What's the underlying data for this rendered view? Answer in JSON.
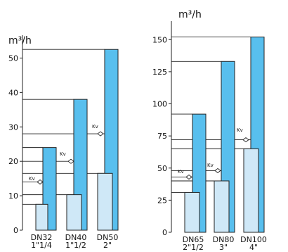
{
  "colors": {
    "kvs_bar": "#58bfee",
    "flow_bar": "#cfe8f7",
    "bar_stroke": "#222222",
    "line": "#222222"
  },
  "chart_data": [
    {
      "type": "bar",
      "unit_label": "m³/h",
      "ylim": [
        0,
        55
      ],
      "yticks": [
        0,
        10,
        20,
        30,
        40,
        50
      ],
      "grid": false,
      "categories": [
        {
          "name": "DN32",
          "size": "1\"1/4"
        },
        {
          "name": "DN40",
          "size": "1\"1/2"
        },
        {
          "name": "DN50",
          "size": "2\""
        }
      ],
      "series": [
        {
          "role": "flow",
          "values": [
            7.5,
            10.3,
            16.5
          ]
        },
        {
          "role": "kvs",
          "values": [
            24,
            38,
            52.5
          ]
        }
      ],
      "kv_markers": {
        "label": "Kv",
        "values": [
          14,
          20,
          28
        ]
      },
      "reference_lines": [
        7.5,
        10.3,
        14,
        16.5,
        20,
        24,
        28,
        38,
        52.5
      ]
    },
    {
      "type": "bar",
      "unit_label": "m³/h",
      "ylim": [
        0,
        160
      ],
      "yticks": [
        0,
        25,
        50,
        75,
        100,
        125,
        150
      ],
      "grid": false,
      "categories": [
        {
          "name": "DN65",
          "size": "2\"1/2"
        },
        {
          "name": "DN80",
          "size": "3\""
        },
        {
          "name": "DN100",
          "size": "4\""
        }
      ],
      "series": [
        {
          "role": "flow",
          "values": [
            31,
            40,
            65
          ]
        },
        {
          "role": "kvs",
          "values": [
            92,
            133,
            152
          ]
        }
      ],
      "kv_markers": {
        "label": "Kv",
        "values": [
          43,
          48,
          72
        ]
      },
      "reference_lines": [
        31,
        40,
        43,
        48,
        65,
        72,
        92,
        133,
        152
      ]
    }
  ]
}
